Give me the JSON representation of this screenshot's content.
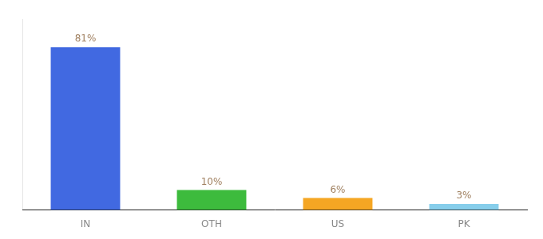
{
  "chart_data": {
    "type": "bar",
    "categories": [
      "IN",
      "OTH",
      "US",
      "PK"
    ],
    "values": [
      81,
      10,
      6,
      3
    ],
    "value_labels": [
      "81%",
      "10%",
      "6%",
      "3%"
    ],
    "colors": [
      "#4169e1",
      "#3dbb3d",
      "#f5a623",
      "#87ceeb"
    ],
    "ylim": [
      0,
      95
    ],
    "grid": false,
    "data_labels": true,
    "tick_labels": "x"
  }
}
